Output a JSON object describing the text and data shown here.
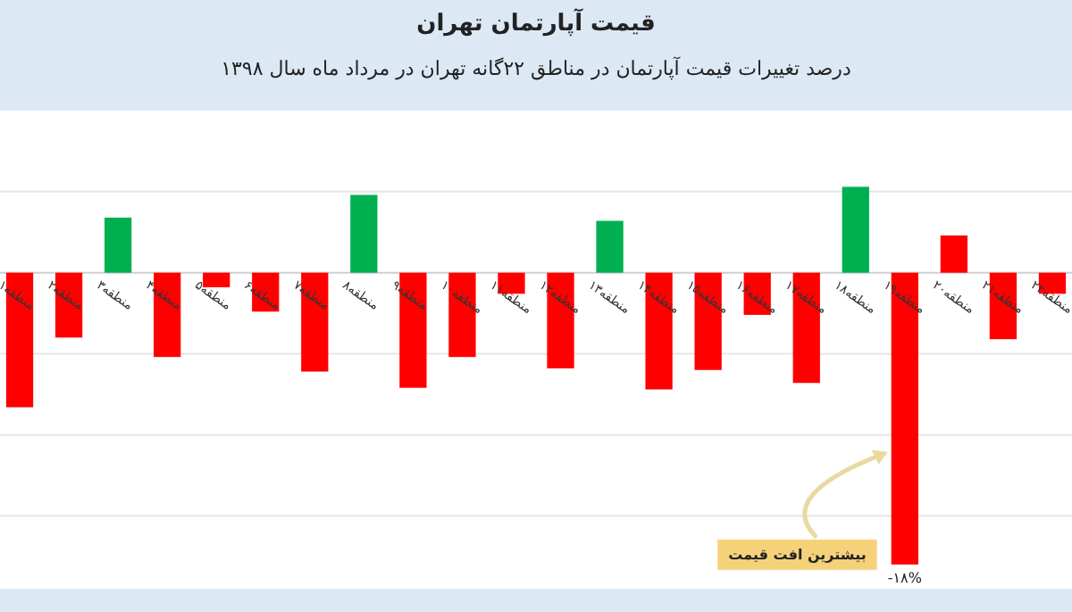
{
  "chart_data": {
    "type": "bar",
    "title": "قیمت آپارتمان تهران",
    "subtitle": "درصد تغییرات قیمت آپارتمان در مناطق ۲۲گانه تهران در مرداد ماه سال ۱۳۹۸",
    "categories": [
      "منطقه۱",
      "منطقه۲",
      "منطقه۳",
      "منطقه۴",
      "منطقه۵",
      "منطقه۶",
      "منطقه۷",
      "منطقه۸",
      "منطقه۹",
      "منطقه۱۰",
      "منطقه۱۱",
      "منطقه۱۲",
      "منطقه۱۳",
      "منطقه۱۴",
      "منطقه۱۵",
      "منطقه۱۶",
      "منطقه۱۷",
      "منطقه۱۸",
      "منطقه۱۹",
      "منطقه۲۰",
      "منطقه۲۱",
      "منطقه۲۲"
    ],
    "values": [
      -8.3,
      -4,
      3.4,
      -5.2,
      -0.9,
      -2.4,
      -6.1,
      4.8,
      -7.1,
      -5.2,
      -1.3,
      -5.9,
      3.2,
      -7.2,
      -6,
      -2.6,
      -6.8,
      5.3,
      -18,
      2.3,
      -4.1,
      -1.3
    ],
    "colors": [
      "#ff0000",
      "#ff0000",
      "#00b050",
      "#ff0000",
      "#ff0000",
      "#ff0000",
      "#ff0000",
      "#00b050",
      "#ff0000",
      "#ff0000",
      "#ff0000",
      "#ff0000",
      "#00b050",
      "#ff0000",
      "#ff0000",
      "#ff0000",
      "#ff0000",
      "#00b050",
      "#ff0000",
      "#ff0000",
      "#ff0000",
      "#ff0000"
    ],
    "ylim": [
      -19.5,
      10
    ],
    "yticks": [
      {
        "value": 5,
        "label": null
      },
      {
        "value": 0,
        "label": null
      },
      {
        "value": -5,
        "label": null
      },
      {
        "value": -10,
        "label": null
      },
      {
        "value": -15,
        "label": null
      }
    ],
    "grid": "y",
    "tick_labels": "x",
    "value_labels": [
      null,
      null,
      null,
      null,
      null,
      null,
      null,
      null,
      null,
      null,
      null,
      null,
      null,
      null,
      null,
      null,
      null,
      null,
      "-۱۸%",
      null,
      null,
      null
    ],
    "annotations": [
      {
        "text": "بیشترین افت قیمت",
        "x": "منطقه۱۹",
        "y": -18
      }
    ]
  }
}
